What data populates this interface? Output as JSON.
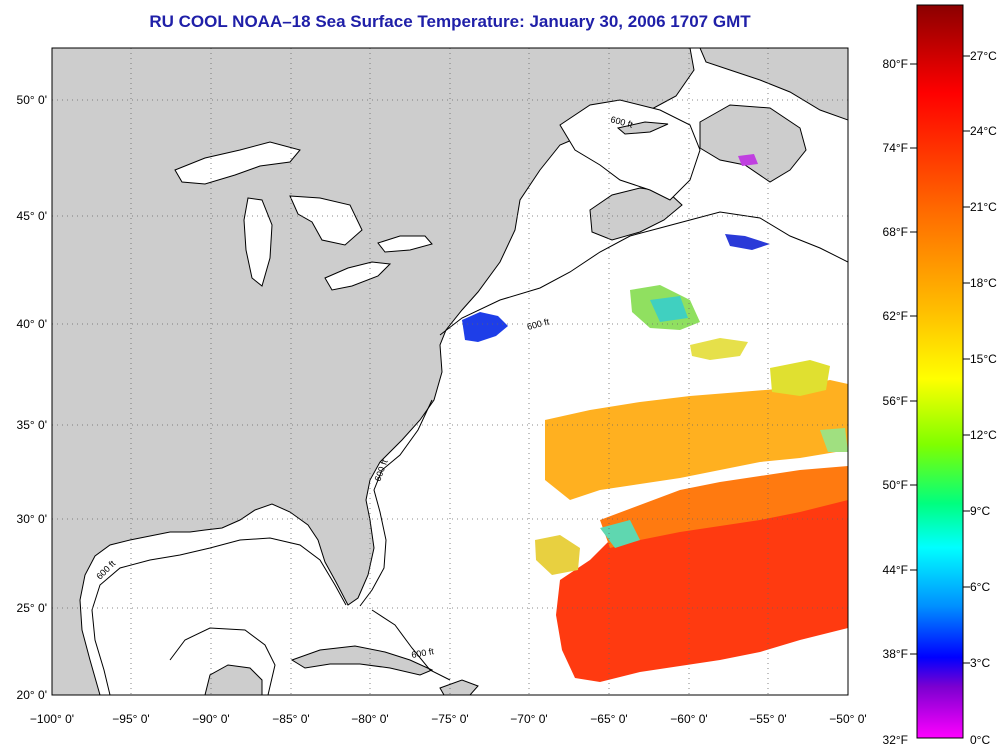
{
  "title": "RU COOL  NOAA–18  Sea Surface Temperature:  January 30, 2006 1707 GMT",
  "colors": {
    "title": "#1f1fa8",
    "land": "#cdcdcd",
    "ocean": "#ffffff",
    "coast": "#000000"
  },
  "map": {
    "lat_labels": [
      "50° 0'",
      "45° 0'",
      "40° 0'",
      "35° 0'",
      "30° 0'",
      "25° 0'",
      "20° 0'"
    ],
    "lon_labels": [
      "−100° 0'",
      "−95° 0'",
      "−90° 0'",
      "−85° 0'",
      "−80° 0'",
      "−75° 0'",
      "−70° 0'",
      "−65° 0'",
      "−60° 0'",
      "−55° 0'",
      "−50° 0'"
    ],
    "isobath_label": "600 ft"
  },
  "colorbar": {
    "fahrenheit_labels": [
      "80°F",
      "74°F",
      "68°F",
      "62°F",
      "56°F",
      "50°F",
      "44°F",
      "38°F",
      "32°F"
    ],
    "celsius_labels": [
      "27°C",
      "24°C",
      "21°C",
      "18°C",
      "15°C",
      "12°C",
      "9°C",
      "6°C",
      "3°C",
      "0°C"
    ],
    "gradient_colors": [
      "#8b0000",
      "#ff0000",
      "#ff6a00",
      "#ffa500",
      "#ffff00",
      "#7fff00",
      "#00ff7f",
      "#00ffff",
      "#0090ff",
      "#0000ff",
      "#7b00d0",
      "#ff00ff"
    ]
  }
}
